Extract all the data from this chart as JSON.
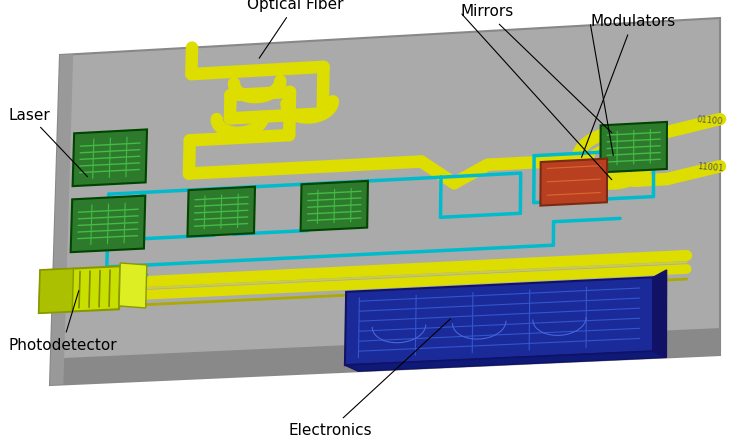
{
  "figsize": [
    7.52,
    4.44
  ],
  "dpi": 100,
  "labels": {
    "optical_fiber": "Optical Fiber",
    "mirrors": "Mirrors",
    "modulators": "Modulators",
    "laser": "Laser",
    "photodetector": "Photodetector",
    "electronics": "Electronics"
  },
  "chip_color": "#aaaaaa",
  "yellow_color": "#dddd00",
  "cyan_color": "#00bbcc",
  "green_color": "#2d7a2d",
  "blue_color": "#2233aa",
  "background": "#ffffff",
  "fontsize": 11
}
